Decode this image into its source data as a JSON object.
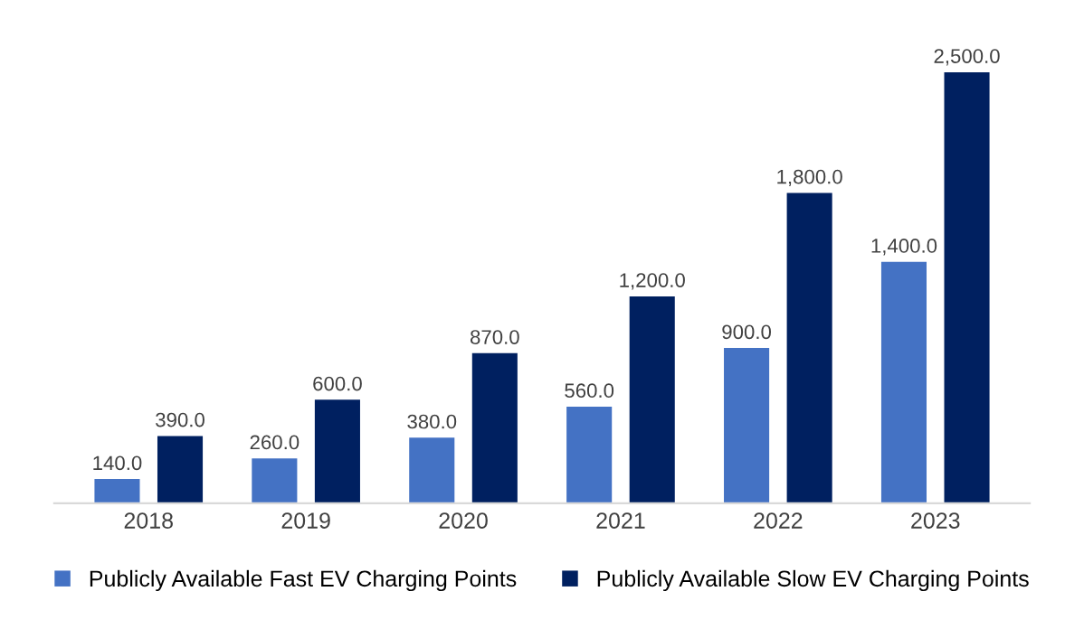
{
  "chart_data": {
    "type": "bar",
    "categories": [
      "2018",
      "2019",
      "2020",
      "2021",
      "2022",
      "2023"
    ],
    "series": [
      {
        "name": "Publicly Available Fast EV Charging Points",
        "color": "#4472c4",
        "values": [
          140,
          260,
          380,
          560,
          900,
          1400
        ],
        "value_labels": [
          "140.0",
          "260.0",
          "380.0",
          "560.0",
          "900.0",
          "1,400.0"
        ]
      },
      {
        "name": "Publicly Available Slow EV Charging Points",
        "color": "#002060",
        "values": [
          390,
          600,
          870,
          1200,
          1800,
          2500
        ],
        "value_labels": [
          "390.0",
          "600.0",
          "870.0",
          "1,200.0",
          "1,800.0",
          "2,500.0"
        ]
      }
    ],
    "legend": "bottom"
  }
}
